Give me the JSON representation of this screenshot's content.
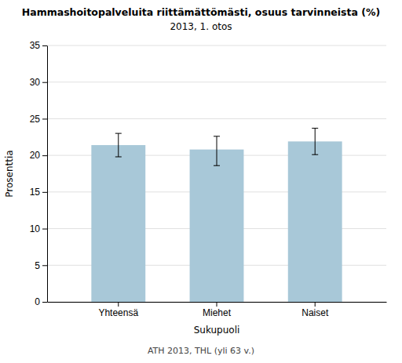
{
  "chart_data": {
    "type": "bar",
    "title": "Hammashoitopalveluita riittämättömästi, osuus tarvinneista (%)",
    "subtitle": "2013, 1. otos",
    "categories": [
      "Yhteensä",
      "Miehet",
      "Naiset"
    ],
    "values": [
      21.4,
      20.8,
      21.9
    ],
    "errors_upper": [
      1.6,
      1.8,
      1.8
    ],
    "errors_lower": [
      1.6,
      2.2,
      1.8
    ],
    "color": "#a8c8d8",
    "x_label": "Sukupuoli",
    "y_label": "Prosenttia",
    "ylim": [
      0,
      35
    ],
    "yticks": [
      0,
      5,
      10,
      15,
      20,
      25,
      30,
      35
    ],
    "grid": true,
    "annotations": [
      "ATH 2013, THL (yli 63 v.)"
    ]
  }
}
